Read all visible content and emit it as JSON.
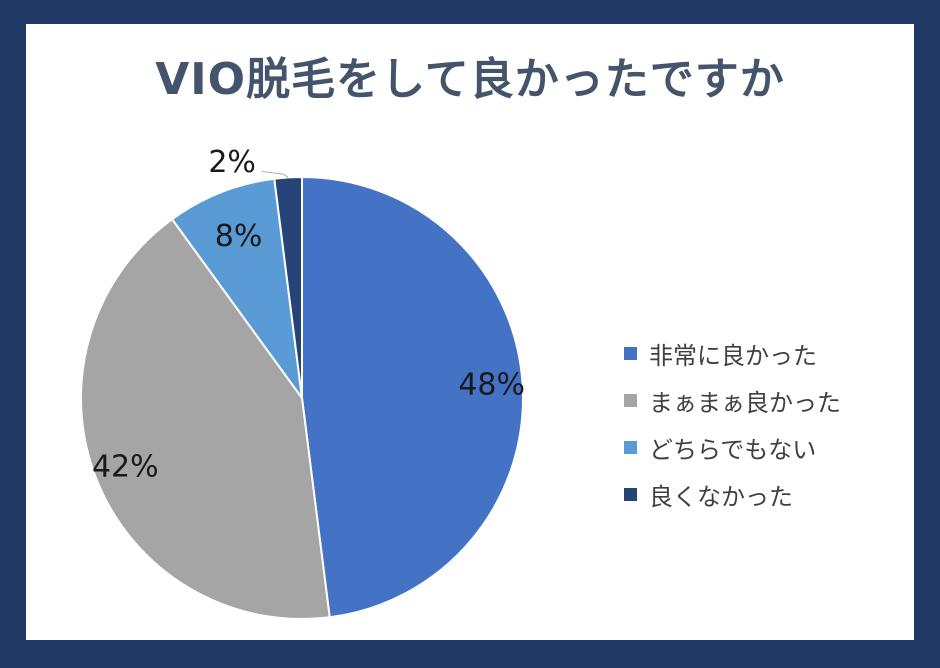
{
  "chart_data": {
    "type": "pie",
    "title": "VIO脱毛をして良かったですか",
    "categories": [
      "非常に良かった",
      "まぁまぁ良かった",
      "どちらでもない",
      "良くなかった"
    ],
    "values": [
      48,
      42,
      8,
      2
    ],
    "labels": [
      "48%",
      "42%",
      "8%",
      "2%"
    ],
    "colors": [
      "#4472c4",
      "#a5a5a5",
      "#5b9bd5",
      "#264478"
    ],
    "start_angle_deg": 0,
    "direction": "clockwise",
    "legend_position": "right"
  },
  "frame": {
    "border_color": "#1f3864",
    "background_color": "#ffffff",
    "title_color": "#44546a"
  }
}
